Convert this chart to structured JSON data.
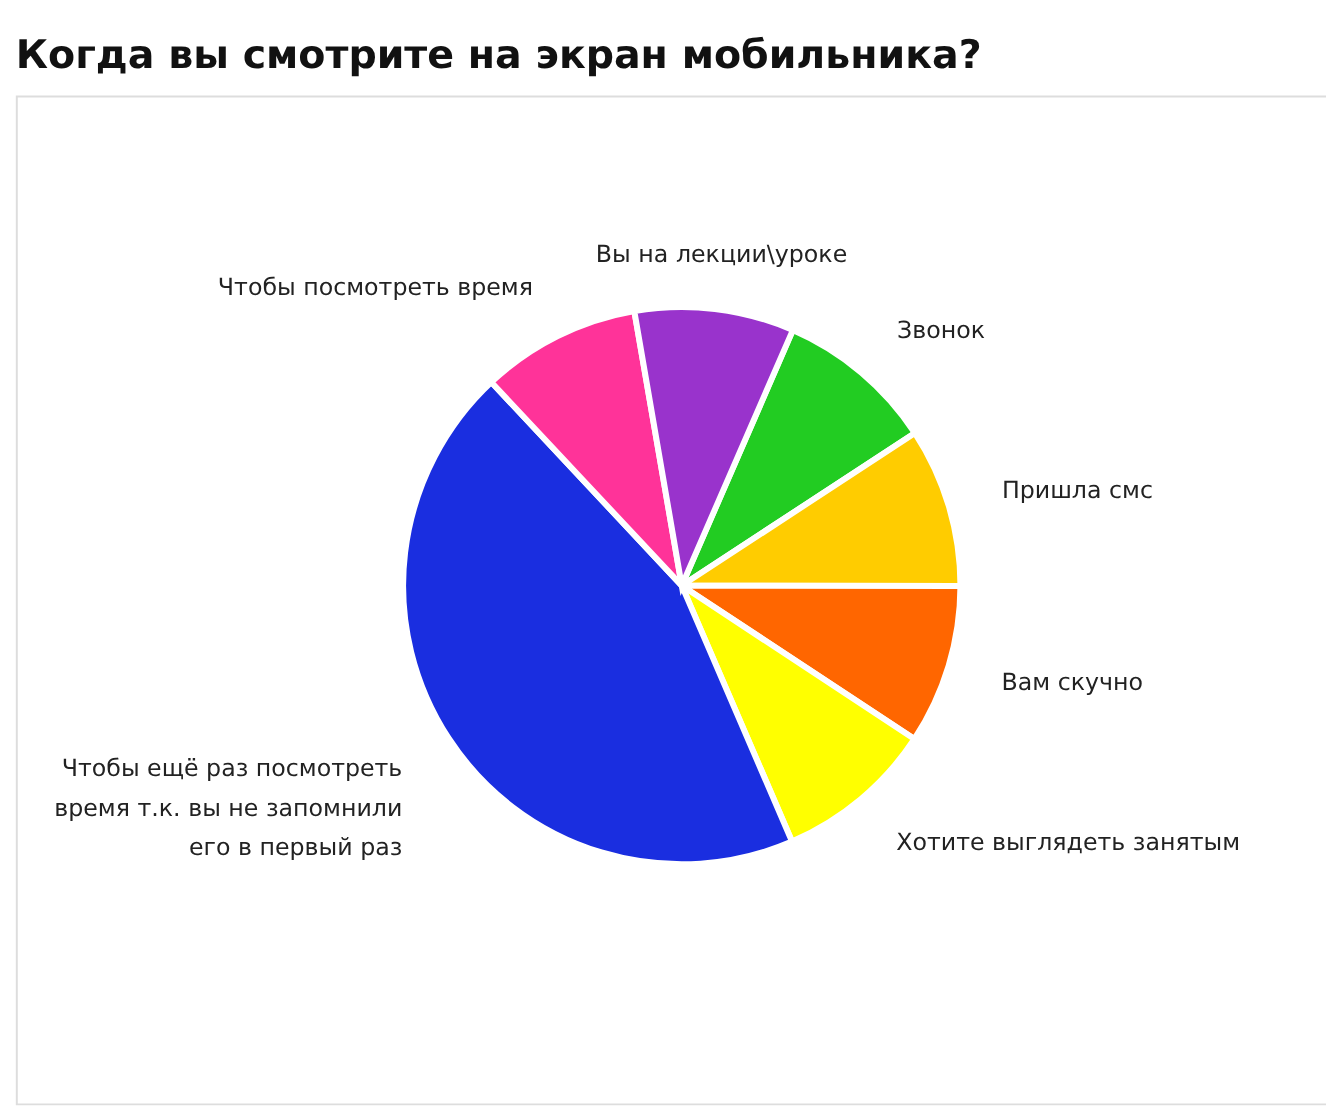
{
  "chart_data": {
    "type": "pie",
    "title": "Когда вы смотрите на экран мобильника?",
    "categories": [
      "Звонок",
      "Пришла смс",
      "Вам скучно",
      "Хотите выглядеть занятым",
      "Чтобы ещё раз посмотреть время т.к. вы не запомнили его в первый раз",
      "Чтобы посмотреть время",
      "Вы на лекции\\уроке"
    ],
    "values": [
      9.25,
      9.25,
      9.25,
      9.25,
      44.5,
      9.25,
      9.25
    ],
    "colors": [
      "#22cc22",
      "#ffcc00",
      "#ff6600",
      "#ffff00",
      "#1a2ee0",
      "#ff3399",
      "#9933cc"
    ]
  }
}
